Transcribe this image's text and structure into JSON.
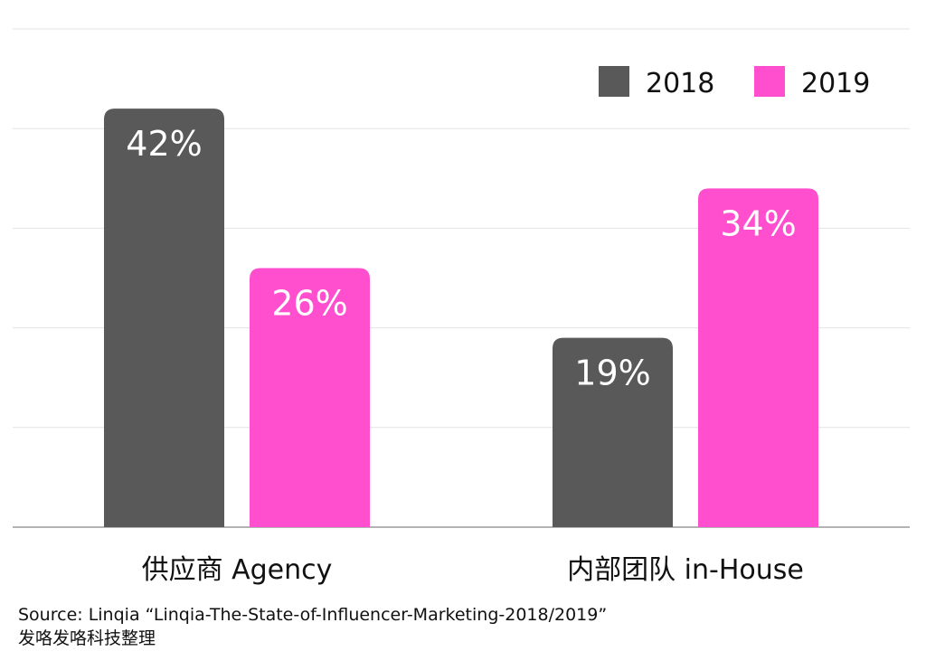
{
  "chart_data": {
    "type": "bar",
    "categories": [
      "供应商 Agency",
      "内部团队 in-House"
    ],
    "series": [
      {
        "name": "2018",
        "values": [
          42,
          19
        ],
        "labels": [
          "42%",
          "19%"
        ],
        "color": "#595959"
      },
      {
        "name": "2019",
        "values": [
          26,
          34
        ],
        "labels": [
          "26%",
          "34%"
        ],
        "color": "#ff4fcf"
      }
    ],
    "ylim": [
      0,
      50
    ],
    "grid": true,
    "legend": "top-right",
    "title": "",
    "xlabel": "",
    "ylabel": ""
  },
  "source": {
    "line1": "Source: Linqia  “Linqia-The-State-of-Influencer-Marketing-2018/2019”",
    "line2": "发咯发咯科技整理"
  }
}
